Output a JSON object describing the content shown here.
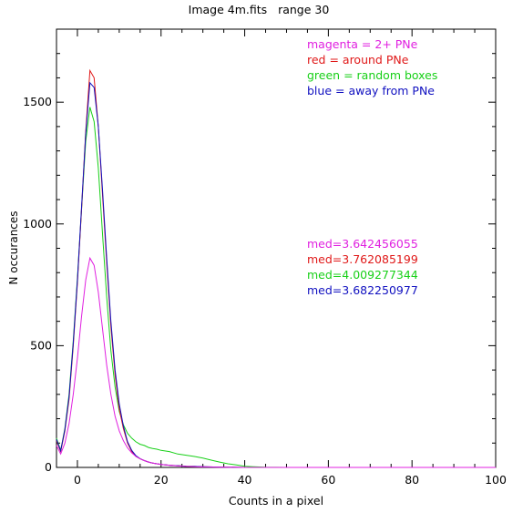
{
  "chart_data": {
    "type": "line",
    "title": "Image 4m.fits   range 30",
    "xlabel": "Counts in a pixel",
    "ylabel": "N occurances",
    "xlim": [
      -5,
      100
    ],
    "ylim": [
      0,
      1800
    ],
    "xticks": [
      0,
      20,
      40,
      60,
      80,
      100
    ],
    "xtick_labels": [
      "0",
      "20",
      "40",
      "60",
      "80",
      "100"
    ],
    "yticks": [
      0,
      500,
      1000,
      1500
    ],
    "ytick_labels": [
      "0",
      "500",
      "1000",
      "1500"
    ],
    "grid": false,
    "legend_position": "top-right",
    "colors": {
      "magenta": "#e020e0",
      "red": "#e01818",
      "green": "#18d018",
      "blue": "#1010c0"
    },
    "series": [
      {
        "key": "green",
        "legend": "green = random boxes",
        "median_label": "med=4.009277344",
        "color": "#18d018",
        "points": [
          [
            -5,
            120
          ],
          [
            -4,
            70
          ],
          [
            -3,
            160
          ],
          [
            -2,
            300
          ],
          [
            -1,
            520
          ],
          [
            0,
            780
          ],
          [
            1,
            1060
          ],
          [
            2,
            1340
          ],
          [
            3,
            1480
          ],
          [
            4,
            1420
          ],
          [
            5,
            1230
          ],
          [
            6,
            960
          ],
          [
            7,
            700
          ],
          [
            8,
            480
          ],
          [
            9,
            330
          ],
          [
            10,
            230
          ],
          [
            11,
            175
          ],
          [
            12,
            140
          ],
          [
            13,
            120
          ],
          [
            14,
            105
          ],
          [
            15,
            95
          ],
          [
            16,
            90
          ],
          [
            17,
            82
          ],
          [
            18,
            78
          ],
          [
            19,
            75
          ],
          [
            20,
            70
          ],
          [
            22,
            65
          ],
          [
            24,
            55
          ],
          [
            26,
            50
          ],
          [
            28,
            45
          ],
          [
            30,
            38
          ],
          [
            32,
            30
          ],
          [
            34,
            22
          ],
          [
            36,
            15
          ],
          [
            38,
            10
          ],
          [
            40,
            5
          ],
          [
            42,
            3
          ],
          [
            45,
            1
          ],
          [
            50,
            0
          ],
          [
            100,
            0
          ]
        ]
      },
      {
        "key": "red",
        "legend": "red = around PNe",
        "median_label": "med=3.762085199",
        "color": "#e01818",
        "points": [
          [
            -5,
            110
          ],
          [
            -4,
            65
          ],
          [
            -3,
            150
          ],
          [
            -2,
            280
          ],
          [
            -1,
            500
          ],
          [
            0,
            760
          ],
          [
            1,
            1060
          ],
          [
            2,
            1380
          ],
          [
            3,
            1630
          ],
          [
            4,
            1600
          ],
          [
            5,
            1400
          ],
          [
            6,
            1120
          ],
          [
            7,
            840
          ],
          [
            8,
            580
          ],
          [
            9,
            380
          ],
          [
            10,
            240
          ],
          [
            11,
            160
          ],
          [
            12,
            100
          ],
          [
            13,
            65
          ],
          [
            14,
            45
          ],
          [
            15,
            35
          ],
          [
            16,
            28
          ],
          [
            17,
            22
          ],
          [
            18,
            18
          ],
          [
            19,
            15
          ],
          [
            20,
            12
          ],
          [
            22,
            9
          ],
          [
            24,
            7
          ],
          [
            26,
            5
          ],
          [
            28,
            4
          ],
          [
            30,
            3
          ],
          [
            35,
            1
          ],
          [
            40,
            0
          ],
          [
            100,
            0
          ]
        ]
      },
      {
        "key": "blue",
        "legend": "blue = away from PNe",
        "median_label": "med=3.682250977",
        "color": "#1010c0",
        "points": [
          [
            -5,
            115
          ],
          [
            -4,
            68
          ],
          [
            -3,
            155
          ],
          [
            -2,
            290
          ],
          [
            -1,
            510
          ],
          [
            0,
            770
          ],
          [
            1,
            1070
          ],
          [
            2,
            1370
          ],
          [
            3,
            1580
          ],
          [
            4,
            1560
          ],
          [
            5,
            1400
          ],
          [
            6,
            1140
          ],
          [
            7,
            860
          ],
          [
            8,
            600
          ],
          [
            9,
            400
          ],
          [
            10,
            260
          ],
          [
            11,
            170
          ],
          [
            12,
            105
          ],
          [
            13,
            70
          ],
          [
            14,
            48
          ],
          [
            15,
            36
          ],
          [
            16,
            28
          ],
          [
            17,
            22
          ],
          [
            18,
            18
          ],
          [
            19,
            15
          ],
          [
            20,
            12
          ],
          [
            22,
            9
          ],
          [
            24,
            7
          ],
          [
            26,
            5
          ],
          [
            28,
            4
          ],
          [
            30,
            3
          ],
          [
            35,
            1
          ],
          [
            40,
            0
          ],
          [
            100,
            0
          ]
        ]
      },
      {
        "key": "magenta",
        "legend": "magenta = 2+ PNe",
        "median_label": "med=3.642456055",
        "color": "#e020e0",
        "points": [
          [
            -5,
            90
          ],
          [
            -4,
            55
          ],
          [
            -3,
            100
          ],
          [
            -2,
            180
          ],
          [
            -1,
            300
          ],
          [
            0,
            450
          ],
          [
            1,
            620
          ],
          [
            2,
            770
          ],
          [
            3,
            860
          ],
          [
            4,
            830
          ],
          [
            5,
            720
          ],
          [
            6,
            570
          ],
          [
            7,
            420
          ],
          [
            8,
            300
          ],
          [
            9,
            210
          ],
          [
            10,
            150
          ],
          [
            11,
            110
          ],
          [
            12,
            80
          ],
          [
            13,
            60
          ],
          [
            14,
            45
          ],
          [
            15,
            35
          ],
          [
            16,
            28
          ],
          [
            17,
            22
          ],
          [
            18,
            18
          ],
          [
            19,
            15
          ],
          [
            20,
            12
          ],
          [
            22,
            9
          ],
          [
            24,
            6
          ],
          [
            26,
            4
          ],
          [
            28,
            3
          ],
          [
            30,
            2
          ],
          [
            35,
            1
          ],
          [
            40,
            0
          ],
          [
            100,
            0
          ]
        ]
      }
    ],
    "legend_order": [
      "magenta",
      "red",
      "green",
      "blue"
    ]
  }
}
